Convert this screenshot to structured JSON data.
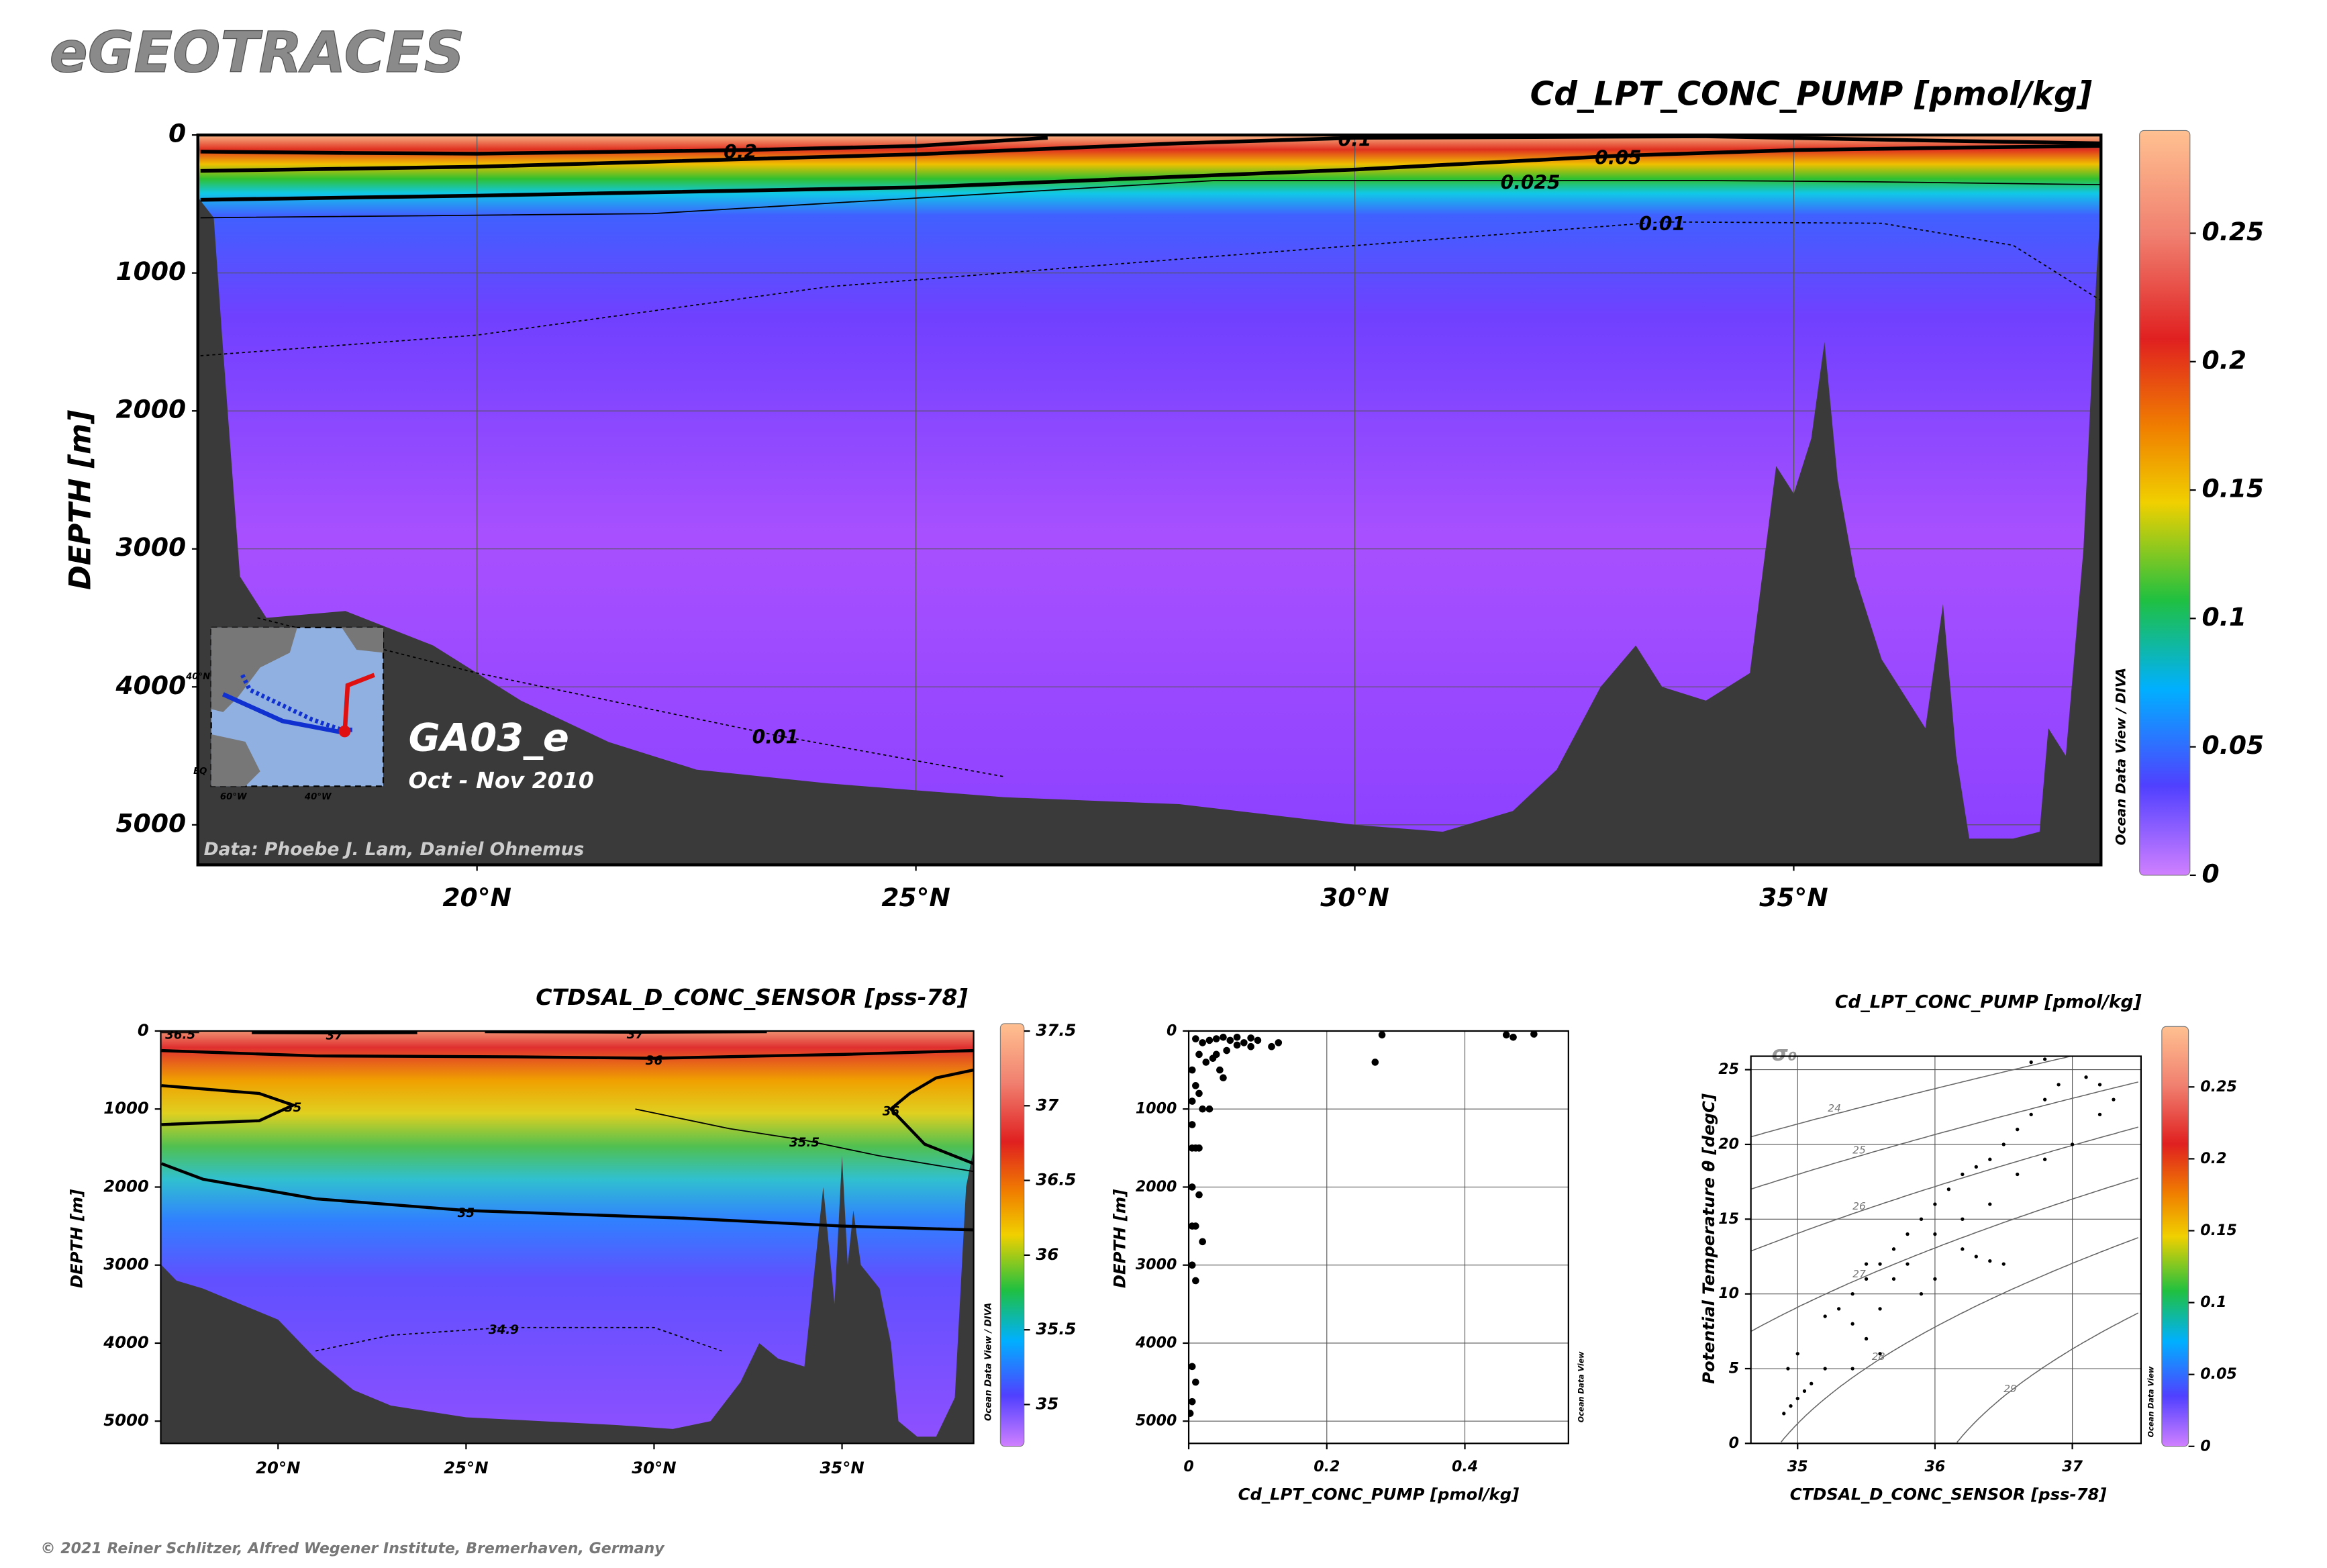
{
  "header": {
    "title": "eGEOTRACES",
    "copyright": "© 2021 Reiner Schlitzer, Alfred Wegener Institute, Bremerhaven, Germany"
  },
  "chart_data": [
    {
      "type": "section",
      "title": "Cd_LPT_CONC_PUMP [pmol/kg]",
      "ylabel": "DEPTH [m]",
      "xlim": [
        16.82,
        38.5
      ],
      "xticks": [
        {
          "value": 20,
          "label": "20°N"
        },
        {
          "value": 25,
          "label": "25°N"
        },
        {
          "value": 30,
          "label": "30°N"
        },
        {
          "value": 35,
          "label": "35°N"
        }
      ],
      "ylim": [
        0,
        5290
      ],
      "yreverse": true,
      "yticks": [
        0,
        1000,
        2000,
        3000,
        4000,
        5000
      ],
      "grid": true,
      "zlim": [
        0,
        0.29
      ],
      "zticks": [
        0,
        0.05,
        0.1,
        0.15,
        0.2,
        0.25
      ],
      "station": "GA03_e",
      "period": "Oct - Nov 2010",
      "credit": "Data: Phoebe J. Lam, Daniel Ohnemus",
      "watermark": "Ocean Data View / DIVA",
      "map_labels": [
        "40°N",
        "EQ",
        "60°W",
        "40°W"
      ],
      "contours": [
        {
          "level": 0.2,
          "line": "thick",
          "lat": [
            16.85,
            18.5,
            20,
            23,
            25,
            26.5
          ],
          "depth": [
            120,
            130,
            135,
            110,
            80,
            20
          ]
        },
        {
          "level": 0.1,
          "line": "thick",
          "lat": [
            16.85,
            20,
            25,
            28,
            30,
            34,
            36.5,
            38.5
          ],
          "depth": [
            260,
            230,
            140,
            60,
            20,
            10,
            40,
            60
          ]
        },
        {
          "level": 0.05,
          "line": "thick",
          "lat": [
            16.85,
            20,
            25,
            30,
            33,
            35,
            37,
            38.5
          ],
          "depth": [
            470,
            440,
            380,
            250,
            150,
            110,
            90,
            80
          ]
        },
        {
          "level": 0.025,
          "line": "thin",
          "lat": [
            16.85,
            22,
            28.4,
            32,
            34,
            36,
            38.5
          ],
          "depth": [
            600,
            570,
            330,
            330,
            330,
            340,
            360
          ]
        },
        {
          "level": 0.01,
          "line": "dotted",
          "lat": [
            16.85,
            20,
            24,
            28,
            33.5,
            36,
            37.5,
            38.5
          ],
          "depth": [
            1600,
            1450,
            1100,
            900,
            630,
            640,
            800,
            1200
          ]
        },
        {
          "level": 0.01,
          "line": "dotted",
          "lat": [
            17.5,
            20,
            23.4,
            26
          ],
          "depth": [
            3500,
            3900,
            4350,
            4650
          ]
        }
      ],
      "bathymetry": {
        "lat": [
          16.82,
          17.0,
          17.1,
          17.3,
          17.6,
          18.5,
          19.5,
          20.5,
          21.5,
          22.5,
          24,
          26,
          28,
          30,
          31,
          31.8,
          32.3,
          32.8,
          33.2,
          33.5,
          34,
          34.5,
          34.8,
          35.0,
          35.2,
          35.35,
          35.5,
          35.7,
          36.0,
          36.5,
          36.7,
          36.85,
          37.0,
          37.5,
          37.8,
          37.9,
          38.1,
          38.3,
          38.45,
          38.5
        ],
        "depth": [
          450,
          600,
          1500,
          3200,
          3500,
          3450,
          3700,
          4100,
          4400,
          4600,
          4700,
          4800,
          4850,
          5000,
          5050,
          4900,
          4600,
          4000,
          3700,
          4000,
          4100,
          3900,
          2400,
          2600,
          2200,
          1500,
          2500,
          3200,
          3800,
          4300,
          3400,
          4500,
          5100,
          5100,
          5050,
          4300,
          4500,
          3000,
          1000,
          500
        ]
      }
    },
    {
      "type": "section",
      "title": "CTDSAL_D_CONC_SENSOR [pss-78]",
      "ylabel": "DEPTH [m]",
      "xlim": [
        16.88,
        38.5
      ],
      "xticks": [
        {
          "value": 20,
          "label": "20°N"
        },
        {
          "value": 25,
          "label": "25°N"
        },
        {
          "value": 30,
          "label": "30°N"
        },
        {
          "value": 35,
          "label": "35°N"
        }
      ],
      "ylim": [
        0,
        5285
      ],
      "yreverse": true,
      "yticks": [
        0,
        1000,
        2000,
        3000,
        4000,
        5000
      ],
      "grid": false,
      "zlim": [
        34.72,
        37.55
      ],
      "zticks": [
        35,
        35.5,
        36,
        36.5,
        37,
        37.5
      ],
      "watermark": "Ocean Data View / DIVA",
      "contours": [
        {
          "level": 36.5,
          "line": "thin",
          "lat": [
            16.9,
            17.4,
            17.9
          ],
          "depth": [
            20,
            20,
            20
          ]
        },
        {
          "level": 37,
          "line": "thick",
          "lat": [
            19.3,
            21.5,
            23.7
          ],
          "depth": [
            20,
            25,
            20
          ]
        },
        {
          "level": 37,
          "line": "thick",
          "lat": [
            25.5,
            29.5,
            33
          ],
          "depth": [
            10,
            15,
            10
          ]
        },
        {
          "level": 36,
          "line": "thick",
          "lat": [
            16.9,
            21,
            26.3,
            30,
            33,
            35,
            38.5
          ],
          "depth": [
            250,
            320,
            330,
            350,
            320,
            300,
            250
          ]
        },
        {
          "level": 36,
          "line": "thick",
          "lat": [
            38.5,
            37.5,
            36.8,
            36.3,
            37.2,
            38.5
          ],
          "depth": [
            500,
            600,
            800,
            1000,
            1450,
            1700
          ]
        },
        {
          "level": 35.5,
          "line": "thin",
          "lat": [
            29.5,
            32,
            34,
            36,
            38.5
          ],
          "depth": [
            1000,
            1250,
            1400,
            1600,
            1800
          ]
        },
        {
          "level": 35,
          "line": "thick",
          "lat": [
            16.9,
            19.5,
            20.4,
            19.5,
            16.9
          ],
          "depth": [
            700,
            800,
            950,
            1150,
            1200
          ]
        },
        {
          "level": 35,
          "line": "thick",
          "lat": [
            16.9,
            18,
            21,
            25,
            30.8,
            35,
            38.5
          ],
          "depth": [
            1700,
            1900,
            2150,
            2300,
            2400,
            2500,
            2550
          ]
        },
        {
          "level": 34.9,
          "line": "dotted",
          "lat": [
            21,
            23,
            26,
            30,
            31.8
          ],
          "depth": [
            4100,
            3900,
            3800,
            3800,
            4100
          ]
        }
      ],
      "bathymetry": {
        "lat": [
          16.9,
          17.3,
          18,
          19,
          20,
          21,
          22,
          23,
          25,
          27,
          29,
          30.5,
          31.5,
          32.3,
          32.8,
          33.3,
          34,
          34.5,
          34.8,
          35,
          35.15,
          35.3,
          35.5,
          36,
          36.3,
          36.5,
          37,
          37.5,
          38,
          38.3,
          38.5
        ],
        "depth": [
          3000,
          3200,
          3300,
          3500,
          3700,
          4200,
          4600,
          4800,
          4950,
          5000,
          5050,
          5100,
          5000,
          4500,
          4000,
          4200,
          4300,
          2000,
          3500,
          1600,
          3000,
          2300,
          3000,
          3300,
          4000,
          5000,
          5200,
          5200,
          4700,
          2000,
          1500
        ]
      }
    },
    {
      "type": "scatter",
      "xlabel": "Cd_LPT_CONC_PUMP [pmol/kg]",
      "ylabel": "DEPTH [m]",
      "color": "#000000",
      "xlim": [
        0,
        0.55
      ],
      "xticks": [
        0,
        0.2,
        0.4
      ],
      "ylim": [
        0,
        5285
      ],
      "yreverse": true,
      "yticks": [
        0,
        1000,
        2000,
        3000,
        4000,
        5000
      ],
      "grid": true,
      "watermark": "Ocean Data View",
      "x": [
        0.01,
        0.02,
        0.03,
        0.04,
        0.05,
        0.06,
        0.07,
        0.08,
        0.09,
        0.1,
        0.12,
        0.13,
        0.015,
        0.025,
        0.035,
        0.045,
        0.05,
        0.055,
        0.28,
        0.27,
        0.46,
        0.47,
        0.5,
        0.005,
        0.01,
        0.015,
        0.005,
        0.02,
        0.03,
        0.005,
        0.01,
        0.005,
        0.015,
        0.005,
        0.015,
        0.005,
        0.01,
        0.02,
        0.005,
        0.01,
        0.005,
        0.01,
        0.005,
        0.002,
        0.04,
        0.07,
        0.09
      ],
      "y": [
        100,
        150,
        120,
        100,
        80,
        120,
        80,
        150,
        90,
        120,
        200,
        150,
        300,
        400,
        350,
        500,
        600,
        250,
        50,
        400,
        50,
        80,
        40,
        500,
        700,
        800,
        900,
        1000,
        1000,
        1200,
        1500,
        1500,
        1500,
        2000,
        2100,
        2500,
        2500,
        2700,
        3000,
        3200,
        4300,
        4500,
        4750,
        4900,
        300,
        180,
        200
      ]
    },
    {
      "type": "scatter",
      "title": "Cd_LPT_CONC_PUMP [pmol/kg]",
      "xlabel": "CTDSAL_D_CONC_SENSOR [pss-78]",
      "ylabel": "Potential Temperature θ [degC]",
      "color": "#000000",
      "xlim": [
        34.66,
        37.5
      ],
      "xticks": [
        35,
        36,
        37
      ],
      "ylim": [
        0,
        25.9
      ],
      "yticks": [
        0,
        5,
        10,
        15,
        20,
        25
      ],
      "grid": true,
      "zlim": [
        0,
        0.292
      ],
      "zticks": [
        0,
        0.05,
        0.1,
        0.15,
        0.2,
        0.25
      ],
      "watermark": "Ocean Data View",
      "isopycnals": {
        "label": "σ₀",
        "levels": [
          24,
          25,
          26,
          27,
          28,
          29
        ]
      },
      "x": [
        34.9,
        34.95,
        35.0,
        35.05,
        35.1,
        34.93,
        35.0,
        35.2,
        35.3,
        35.4,
        35.5,
        35.6,
        35.7,
        35.8,
        35.9,
        36.0,
        36.1,
        36.2,
        36.3,
        36.4,
        36.5,
        36.6,
        36.7,
        36.8,
        36.9,
        37.1,
        37.2,
        36.7,
        36.8,
        36.2,
        36.3,
        36.4,
        36.5,
        35.5,
        35.6,
        35.4,
        35.2,
        35.5,
        35.7,
        35.9,
        36.0,
        35.4,
        35.6,
        35.8,
        36.0,
        36.2,
        36.4,
        36.6,
        36.8,
        37.0,
        37.2,
        37.3
      ],
      "y": [
        2,
        2.5,
        3,
        3.5,
        4,
        5,
        6,
        8.5,
        9,
        10,
        11,
        12,
        13,
        14,
        15,
        16,
        17,
        18,
        18.5,
        19,
        20,
        21,
        22,
        23,
        24,
        24.5,
        24,
        25.5,
        25.7,
        13,
        12.5,
        12.2,
        12,
        7,
        6,
        5,
        5,
        12,
        11,
        10,
        11,
        8,
        9,
        12,
        14,
        15,
        16,
        18,
        19,
        20,
        22,
        23
      ]
    }
  ]
}
